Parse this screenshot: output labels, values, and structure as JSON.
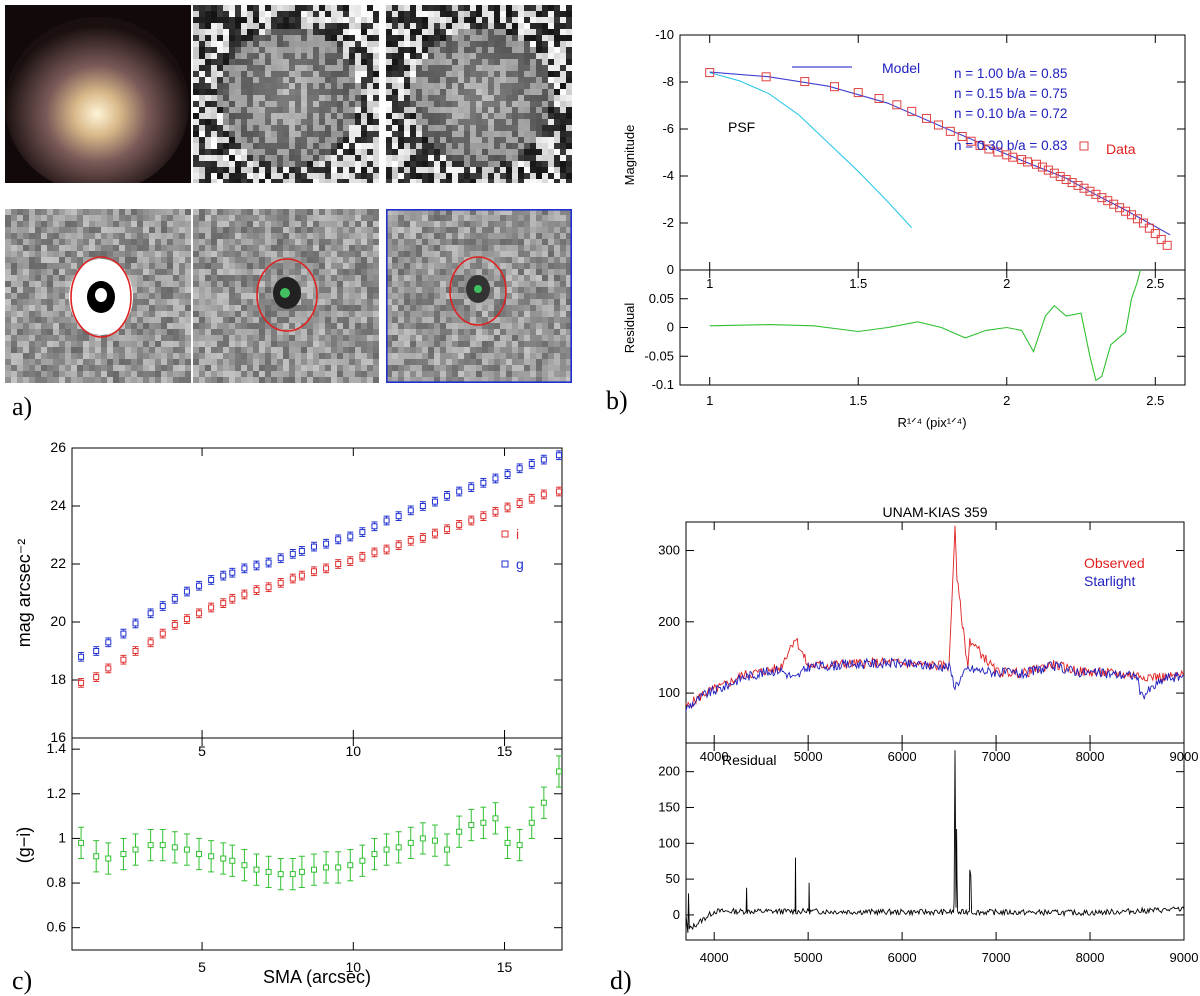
{
  "panel_labels": {
    "a": "a)",
    "b": "b)",
    "c": "c)",
    "d": "d)"
  },
  "panel_a": {
    "tiles": [
      {
        "row": 1,
        "col": 1,
        "kind": "color-image",
        "description": "galaxy color composite"
      },
      {
        "row": 1,
        "col": 2,
        "kind": "noise-image"
      },
      {
        "row": 1,
        "col": 3,
        "kind": "noise-image"
      },
      {
        "row": 2,
        "col": 1,
        "kind": "model-image",
        "ellipse": "red"
      },
      {
        "row": 2,
        "col": 2,
        "kind": "residual-image",
        "ellipse": "red"
      },
      {
        "row": 2,
        "col": 3,
        "kind": "residual-image",
        "ellipse": "red",
        "frame": "blue"
      }
    ],
    "colors": {
      "ellipse": "#e02020",
      "frame": "#2030d0"
    }
  },
  "chart_data": [
    {
      "id": "b-top",
      "type": "line",
      "ylabel": "Magnitude",
      "xlim": [
        0.9,
        2.6
      ],
      "ylim": [
        0,
        -10
      ],
      "x_ticks": [
        1,
        1.5,
        2,
        2.5
      ],
      "x_tick_labels": [
        "1",
        "1.5",
        "2",
        "2.5"
      ],
      "y_ticks": [
        -10,
        -8,
        -6,
        -4,
        -2,
        0
      ],
      "y_tick_labels": [
        "-10",
        "-8",
        "-6",
        "-4",
        "-2",
        "0"
      ],
      "legend": {
        "model_label": "Model",
        "data_label": "Data",
        "psf_label": "PSF"
      },
      "annotations": [
        "n = 1.00 b/a = 0.85",
        "n = 0.15 b/a = 0.75",
        "n = 0.10 b/a = 0.72",
        "n = 0.30 b/a = 0.83"
      ],
      "series": [
        {
          "name": "Data",
          "kind": "scatter",
          "color": "#e04040",
          "x": [
            1.0,
            1.19,
            1.32,
            1.42,
            1.5,
            1.57,
            1.63,
            1.68,
            1.73,
            1.77,
            1.81,
            1.85,
            1.88,
            1.91,
            1.94,
            1.97,
            2.0,
            2.02,
            2.05,
            2.07,
            2.1,
            2.12,
            2.14,
            2.16,
            2.18,
            2.2,
            2.22,
            2.24,
            2.26,
            2.28,
            2.3,
            2.32,
            2.34,
            2.36,
            2.38,
            2.4,
            2.42,
            2.44,
            2.46,
            2.48,
            2.5,
            2.52,
            2.54
          ],
          "y": [
            -8.4,
            -8.22,
            -8.02,
            -7.8,
            -7.55,
            -7.3,
            -7.03,
            -6.75,
            -6.45,
            -6.17,
            -5.9,
            -5.68,
            -5.48,
            -5.3,
            -5.15,
            -5.02,
            -4.9,
            -4.8,
            -4.7,
            -4.6,
            -4.5,
            -4.38,
            -4.25,
            -4.12,
            -3.98,
            -3.85,
            -3.72,
            -3.6,
            -3.48,
            -3.35,
            -3.22,
            -3.08,
            -2.95,
            -2.8,
            -2.65,
            -2.5,
            -2.35,
            -2.18,
            -2.0,
            -1.78,
            -1.55,
            -1.3,
            -1.05
          ]
        },
        {
          "name": "Model",
          "kind": "line",
          "color": "#4040d0",
          "x": [
            1.0,
            1.2,
            1.4,
            1.6,
            1.8,
            2.0,
            2.2,
            2.3,
            2.4,
            2.5,
            2.55
          ],
          "y": [
            -8.42,
            -8.22,
            -7.82,
            -7.1,
            -6.0,
            -4.92,
            -3.9,
            -3.2,
            -2.55,
            -1.85,
            -1.5
          ]
        },
        {
          "name": "PSF",
          "kind": "line",
          "color": "#30c8e8",
          "x": [
            1.0,
            1.1,
            1.2,
            1.3,
            1.4,
            1.5,
            1.6,
            1.68
          ],
          "y": [
            -8.4,
            -8.05,
            -7.5,
            -6.6,
            -5.4,
            -4.2,
            -2.9,
            -1.8
          ]
        }
      ]
    },
    {
      "id": "b-bottom",
      "type": "line",
      "ylabel": "Residual",
      "xlabel": "R¹ᐟ⁴ (pix¹ᐟ⁴)",
      "xlim": [
        0.9,
        2.6
      ],
      "ylim": [
        -0.1,
        0.1
      ],
      "x_ticks": [
        1,
        1.5,
        2,
        2.5
      ],
      "x_tick_labels": [
        "1",
        "1.5",
        "2",
        "2.5"
      ],
      "y_ticks": [
        -0.1,
        -0.05,
        0,
        0.05
      ],
      "y_tick_labels": [
        "-0.1",
        "-0.05",
        "0",
        "0.05"
      ],
      "series": [
        {
          "name": "Residual",
          "kind": "line",
          "color": "#30c030",
          "x": [
            1.0,
            1.2,
            1.35,
            1.5,
            1.6,
            1.7,
            1.78,
            1.86,
            1.93,
            2.0,
            2.05,
            2.09,
            2.13,
            2.16,
            2.2,
            2.25,
            2.28,
            2.3,
            2.32,
            2.35,
            2.4,
            2.42,
            2.44,
            2.45
          ],
          "y": [
            0.003,
            0.005,
            0.003,
            -0.007,
            0.0,
            0.01,
            0.0,
            -0.018,
            -0.005,
            0.0,
            -0.005,
            -0.042,
            0.02,
            0.038,
            0.02,
            0.025,
            -0.05,
            -0.092,
            -0.085,
            -0.03,
            -0.008,
            0.05,
            0.08,
            0.1
          ]
        }
      ]
    },
    {
      "id": "c-top",
      "type": "scatter",
      "ylabel": "mag arcsec⁻²",
      "xlim": [
        0.7,
        16.9
      ],
      "ylim": [
        16,
        26
      ],
      "x_ticks": [
        5,
        10,
        15
      ],
      "x_tick_labels": [
        "5",
        "10",
        "15"
      ],
      "y_ticks": [
        16,
        18,
        20,
        22,
        24,
        26
      ],
      "y_tick_labels": [
        "16",
        "18",
        "20",
        "22",
        "24",
        "26"
      ],
      "legend": {
        "i_label": "i",
        "g_label": "g"
      },
      "series": [
        {
          "name": "i",
          "color": "#e03030",
          "x": [
            1.0,
            1.5,
            1.9,
            2.4,
            2.8,
            3.3,
            3.7,
            4.1,
            4.5,
            4.9,
            5.3,
            5.7,
            6.0,
            6.4,
            6.8,
            7.2,
            7.6,
            8.0,
            8.3,
            8.7,
            9.1,
            9.5,
            9.9,
            10.3,
            10.7,
            11.1,
            11.5,
            11.9,
            12.3,
            12.7,
            13.1,
            13.5,
            13.9,
            14.3,
            14.7,
            15.1,
            15.5,
            15.9,
            16.3,
            16.8
          ],
          "y": [
            17.9,
            18.1,
            18.4,
            18.7,
            19.0,
            19.3,
            19.6,
            19.9,
            20.1,
            20.3,
            20.5,
            20.65,
            20.8,
            20.95,
            21.1,
            21.2,
            21.35,
            21.5,
            21.6,
            21.75,
            21.85,
            22.0,
            22.1,
            22.25,
            22.4,
            22.5,
            22.65,
            22.8,
            22.9,
            23.05,
            23.2,
            23.35,
            23.5,
            23.65,
            23.8,
            23.95,
            24.1,
            24.25,
            24.4,
            24.5
          ]
        },
        {
          "name": "g",
          "color": "#2030d0",
          "x": [
            1.0,
            1.5,
            1.9,
            2.4,
            2.8,
            3.3,
            3.7,
            4.1,
            4.5,
            4.9,
            5.3,
            5.7,
            6.0,
            6.4,
            6.8,
            7.2,
            7.6,
            8.0,
            8.3,
            8.7,
            9.1,
            9.5,
            9.9,
            10.3,
            10.7,
            11.1,
            11.5,
            11.9,
            12.3,
            12.7,
            13.1,
            13.5,
            13.9,
            14.3,
            14.7,
            15.1,
            15.5,
            15.9,
            16.3,
            16.8
          ],
          "y": [
            18.8,
            19.0,
            19.3,
            19.6,
            19.95,
            20.3,
            20.55,
            20.8,
            21.05,
            21.25,
            21.45,
            21.6,
            21.7,
            21.85,
            21.95,
            22.05,
            22.2,
            22.35,
            22.45,
            22.6,
            22.7,
            22.85,
            22.95,
            23.1,
            23.3,
            23.5,
            23.65,
            23.85,
            24.0,
            24.15,
            24.35,
            24.5,
            24.65,
            24.8,
            24.95,
            25.1,
            25.3,
            25.45,
            25.6,
            25.75
          ]
        }
      ]
    },
    {
      "id": "c-bottom",
      "type": "scatter",
      "ylabel": "(g−i)",
      "xlabel": "SMA (arcsec)",
      "xlim": [
        0.7,
        16.9
      ],
      "ylim": [
        0.5,
        1.45
      ],
      "x_ticks": [
        5,
        10,
        15
      ],
      "x_tick_labels": [
        "5",
        "10",
        "15"
      ],
      "y_ticks": [
        0.6,
        0.8,
        1.0,
        1.2,
        1.4
      ],
      "y_tick_labels": [
        "0.6",
        "0.8",
        "1",
        "1.2",
        "1.4"
      ],
      "series": [
        {
          "name": "g-i",
          "color": "#30c030",
          "x": [
            1.0,
            1.5,
            1.9,
            2.4,
            2.8,
            3.3,
            3.7,
            4.1,
            4.5,
            4.9,
            5.3,
            5.7,
            6.0,
            6.4,
            6.8,
            7.2,
            7.6,
            8.0,
            8.3,
            8.7,
            9.1,
            9.5,
            9.9,
            10.3,
            10.7,
            11.1,
            11.5,
            11.9,
            12.3,
            12.7,
            13.1,
            13.5,
            13.9,
            14.3,
            14.7,
            15.1,
            15.5,
            15.9,
            16.3,
            16.8
          ],
          "y": [
            0.98,
            0.92,
            0.91,
            0.93,
            0.95,
            0.97,
            0.97,
            0.96,
            0.95,
            0.93,
            0.92,
            0.91,
            0.9,
            0.88,
            0.86,
            0.85,
            0.84,
            0.84,
            0.85,
            0.86,
            0.87,
            0.87,
            0.88,
            0.9,
            0.93,
            0.95,
            0.96,
            0.98,
            1.0,
            0.99,
            0.95,
            1.03,
            1.06,
            1.07,
            1.09,
            0.98,
            0.97,
            1.07,
            1.16,
            1.3
          ]
        }
      ]
    },
    {
      "id": "d-top",
      "type": "line",
      "title": "UNAM-KIAS 359",
      "xlim": [
        3700,
        9000
      ],
      "ylim": [
        30,
        340
      ],
      "x_ticks": [
        4000,
        5000,
        6000,
        7000,
        8000,
        9000
      ],
      "x_tick_labels": [
        "4000",
        "5000",
        "6000",
        "7000",
        "8000",
        "9000"
      ],
      "y_ticks": [
        100,
        200,
        300
      ],
      "y_tick_labels": [
        "100",
        "200",
        "300"
      ],
      "legend": {
        "observed_label": "Observed",
        "starlight_label": "Starlight"
      },
      "series": [
        {
          "name": "Observed",
          "color": "#e02020",
          "x": [
            3700,
            3900,
            4100,
            4300,
            4500,
            4700,
            4861,
            5000,
            5300,
            5600,
            5900,
            6200,
            6500,
            6563,
            6584,
            6700,
            6720,
            7000,
            7300,
            7600,
            7900,
            8200,
            8500,
            8800,
            9000
          ],
          "y": [
            80,
            100,
            110,
            125,
            130,
            135,
            178,
            138,
            140,
            142,
            143,
            140,
            138,
            335,
            260,
            135,
            175,
            130,
            128,
            140,
            130,
            128,
            125,
            122,
            125
          ]
        },
        {
          "name": "Starlight",
          "color": "#2020c0",
          "x": [
            3700,
            3900,
            4100,
            4300,
            4500,
            4700,
            4861,
            5000,
            5300,
            5600,
            5900,
            6200,
            6500,
            6563,
            6700,
            7000,
            7300,
            7600,
            7900,
            8200,
            8500,
            8542,
            8800,
            9000
          ],
          "y": [
            78,
            98,
            108,
            122,
            128,
            133,
            120,
            137,
            139,
            141,
            142,
            139,
            137,
            110,
            134,
            129,
            127,
            138,
            129,
            127,
            124,
            95,
            121,
            124
          ]
        }
      ]
    },
    {
      "id": "d-bottom",
      "type": "line",
      "xlim": [
        3700,
        9000
      ],
      "ylim": [
        -35,
        240
      ],
      "x_ticks": [
        4000,
        5000,
        6000,
        7000,
        8000,
        9000
      ],
      "x_tick_labels": [
        "4000",
        "5000",
        "6000",
        "7000",
        "8000",
        "9000"
      ],
      "y_ticks": [
        0,
        50,
        100,
        150,
        200
      ],
      "y_tick_labels": [
        "0",
        "50",
        "100",
        "150",
        "200"
      ],
      "annotation": "Residual",
      "series": [
        {
          "name": "Residual",
          "color": "#000000",
          "x": [
            3700,
            3720,
            3727,
            3735,
            4000,
            4340,
            4345,
            4350,
            4861,
            4865,
            4870,
            5007,
            5010,
            5015,
            6000,
            6548,
            6553,
            6563,
            6573,
            6580,
            6584,
            6590,
            6600,
            6716,
            6720,
            6731,
            6740,
            8000,
            9000
          ],
          "y": [
            0,
            -25,
            30,
            -20,
            5,
            5,
            38,
            5,
            5,
            80,
            5,
            5,
            45,
            5,
            4,
            4,
            20,
            230,
            10,
            120,
            50,
            5,
            3,
            5,
            63,
            55,
            4,
            3,
            8
          ]
        }
      ]
    }
  ]
}
